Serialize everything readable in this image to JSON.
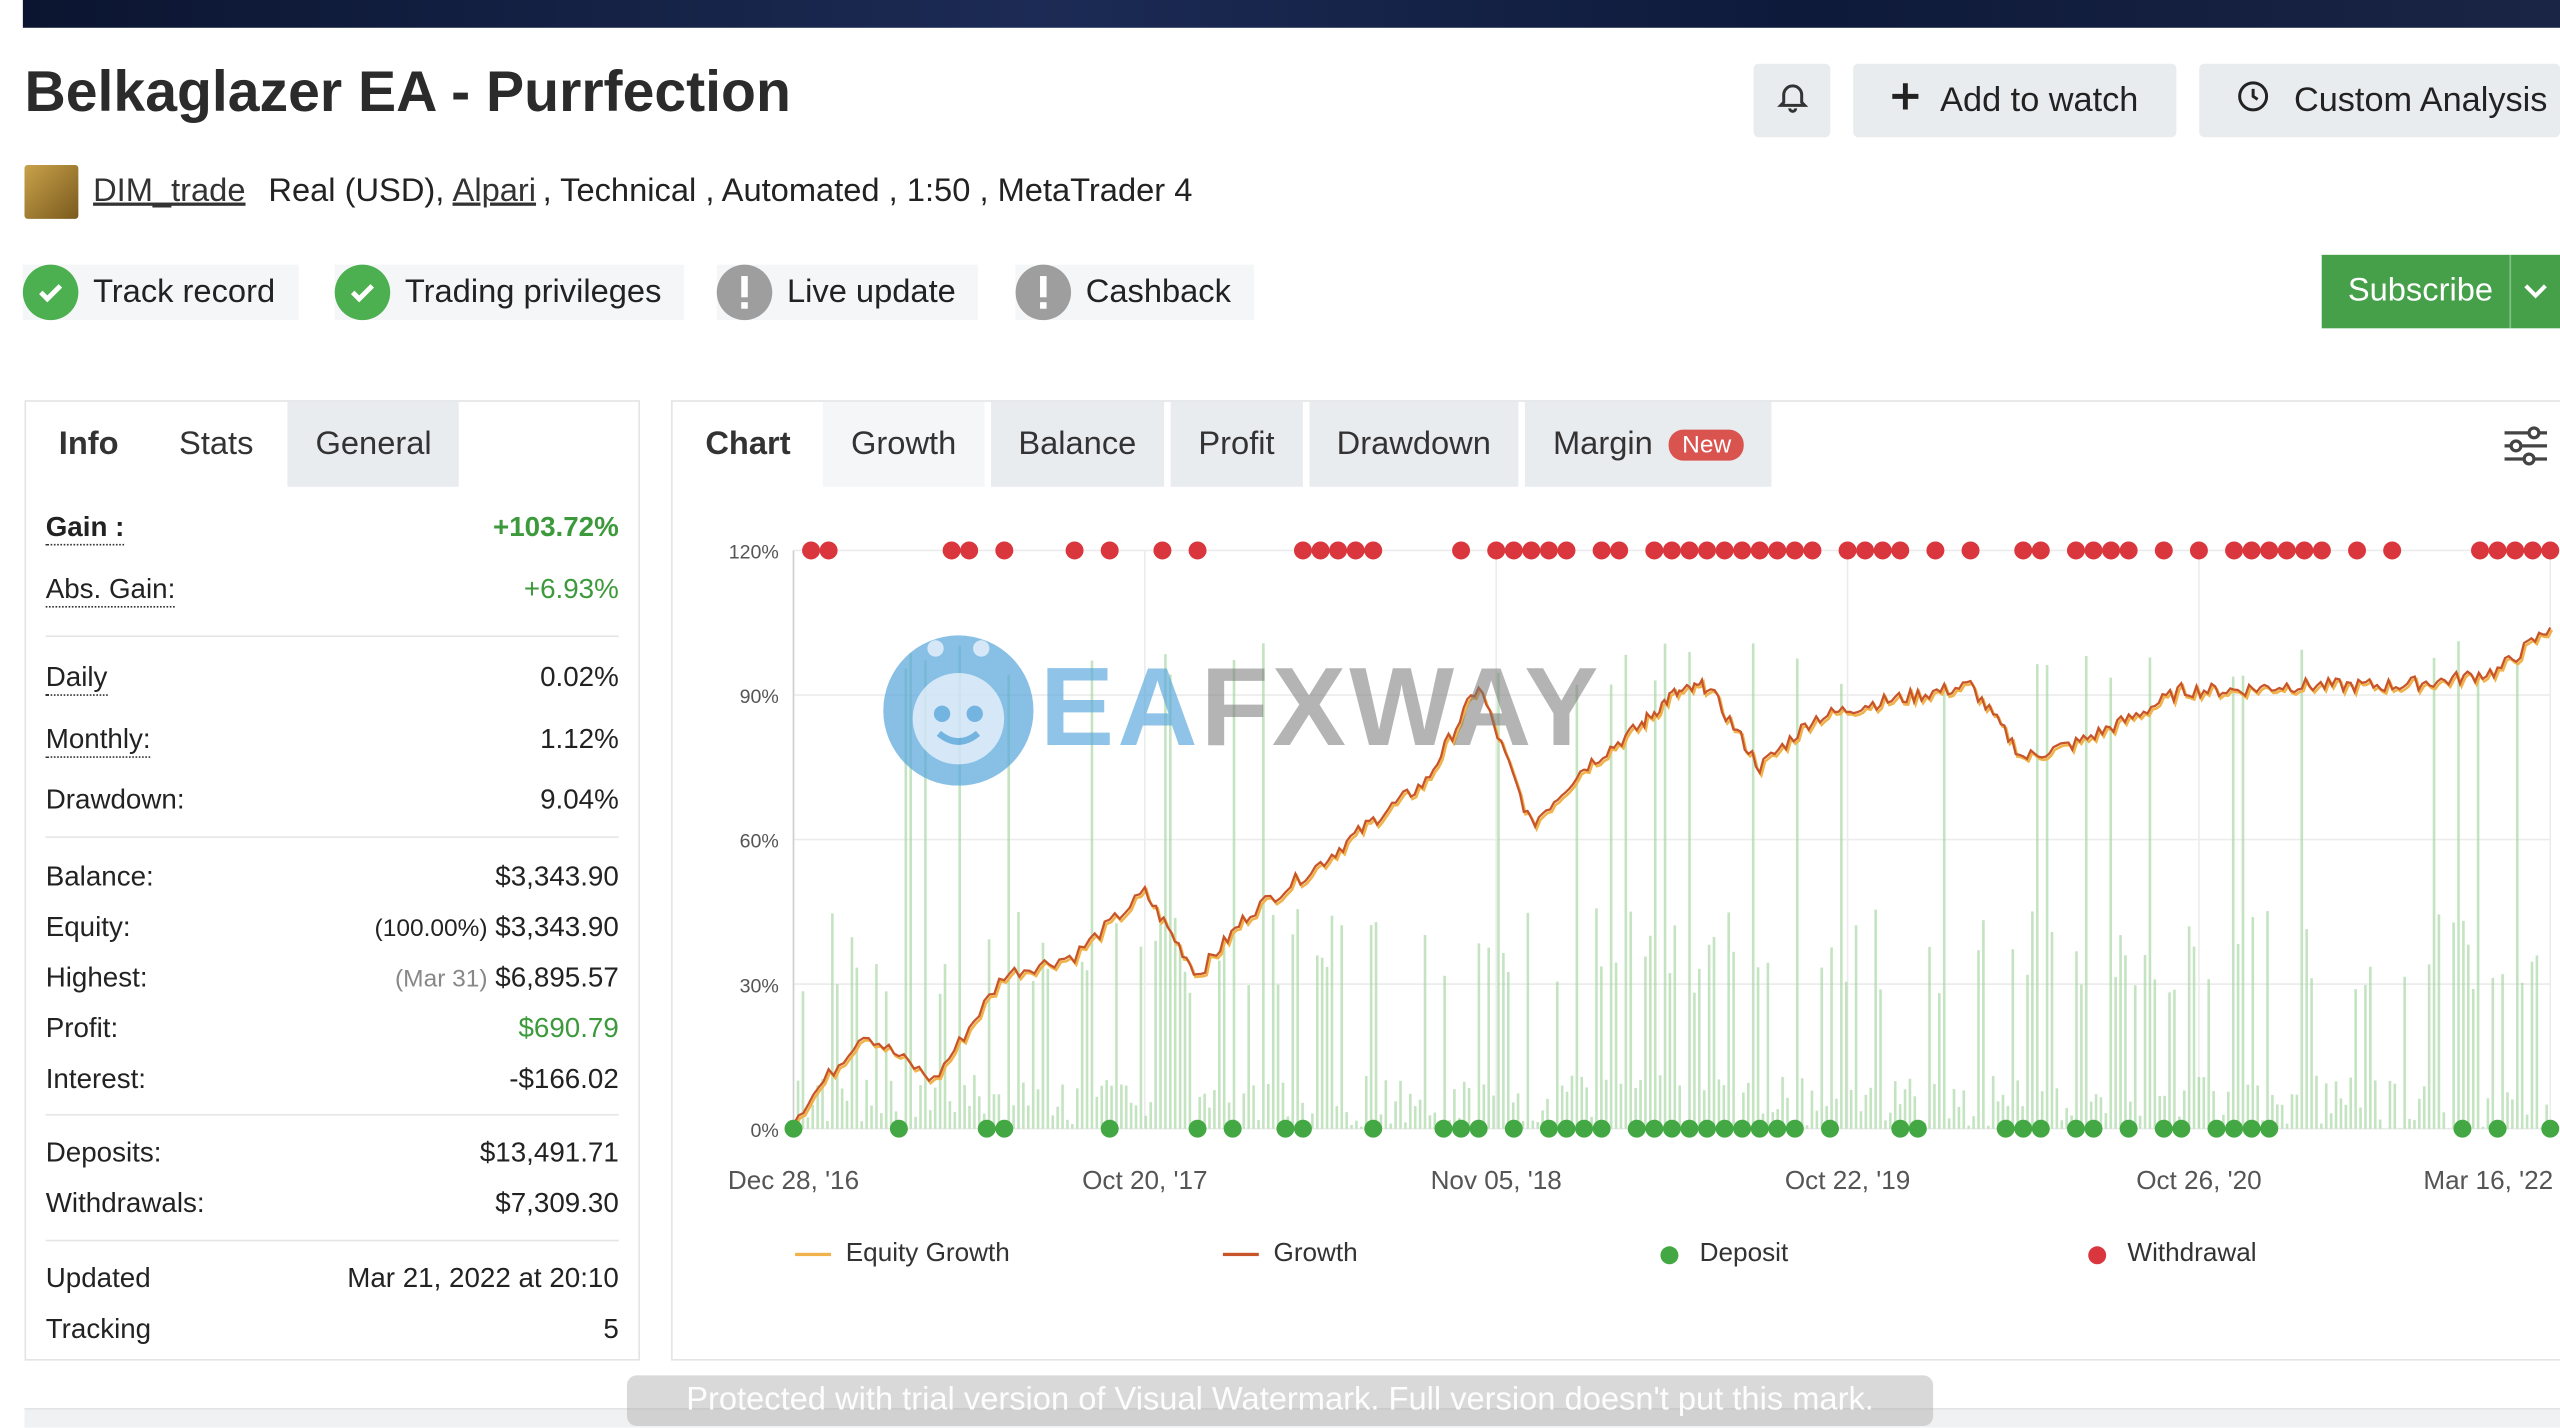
{
  "header": {
    "title": "Belkaglazer EA - Purrfection",
    "add_to_watch": "Add to watch",
    "custom_analysis": "Custom Analysis"
  },
  "meta": {
    "user": "DIM_trade",
    "account": "Real (USD),",
    "broker": "Alpari",
    "tags": ", Technical , Automated , 1:50 , MetaTrader 4"
  },
  "badges": [
    {
      "label": "Track record",
      "status": "ok"
    },
    {
      "label": "Trading privileges",
      "status": "ok"
    },
    {
      "label": "Live update",
      "status": "warn"
    },
    {
      "label": "Cashback",
      "status": "warn"
    }
  ],
  "subscribe": "Subscribe",
  "info_panel": {
    "tabs": [
      "Info",
      "Stats",
      "General"
    ],
    "gain_label": "Gain :",
    "gain": "+103.72%",
    "abs_gain_label": "Abs. Gain:",
    "abs_gain": "+6.93%",
    "daily_label": "Daily",
    "daily": "0.02%",
    "monthly_label": "Monthly:",
    "monthly": "1.12%",
    "drawdown_label": "Drawdown:",
    "drawdown": "9.04%",
    "balance_label": "Balance:",
    "balance": "$3,343.90",
    "equity_label": "Equity:",
    "equity_pct": "(100.00%)",
    "equity": "$3,343.90",
    "highest_label": "Highest:",
    "highest_date": "(Mar 31)",
    "highest": "$6,895.57",
    "profit_label": "Profit:",
    "profit": "$690.79",
    "interest_label": "Interest:",
    "interest": "-$166.02",
    "deposits_label": "Deposits:",
    "deposits": "$13,491.71",
    "withdrawals_label": "Withdrawals:",
    "withdrawals": "$7,309.30",
    "updated_label": "Updated",
    "updated": "Mar 21, 2022 at 20:10",
    "tracking_label": "Tracking",
    "tracking": "5"
  },
  "chart_panel": {
    "tabs": [
      "Chart",
      "Growth",
      "Balance",
      "Profit",
      "Drawdown",
      "Margin"
    ],
    "new_badge": "New"
  },
  "watermarks": {
    "logo_text_blue": "EA",
    "logo_text_gray": "FXWAY",
    "footer": "Protected with trial version of Visual Watermark. Full version doesn't put this mark."
  },
  "colors": {
    "growth": "#c8552a",
    "equity": "#f0b24a",
    "deposit": "#43a843",
    "withdrawal": "#d9363e",
    "bars": "#a5d6a0",
    "subscribe": "#45a049",
    "new_badge": "#d9534f"
  },
  "chart_data": {
    "type": "line",
    "x_ticks": [
      "Dec 28, '16",
      "Oct 20, '17",
      "Nov 05, '18",
      "Oct 22, '19",
      "Oct 26, '20",
      "Mar 16, '22"
    ],
    "y_ticks": [
      "0%",
      "30%",
      "60%",
      "90%",
      "120%"
    ],
    "ylim": [
      0,
      120
    ],
    "grid": true,
    "legend": [
      "Equity Growth",
      "Growth",
      "Deposit",
      "Withdrawal"
    ],
    "legend_position": "bottom",
    "series": [
      {
        "name": "Growth",
        "x": [
          0,
          0.04,
          0.08,
          0.12,
          0.16,
          0.2,
          0.23,
          0.26,
          0.3,
          0.33,
          0.36,
          0.39,
          0.42,
          0.45,
          0.48,
          0.5,
          0.52,
          0.55,
          0.58,
          0.61,
          0.64,
          0.67,
          0.7,
          0.73,
          0.76,
          0.79,
          0.82,
          0.85,
          0.88,
          0.91,
          0.94,
          0.97,
          1.0
        ],
        "values": [
          2,
          20,
          10,
          32,
          36,
          49,
          32,
          45,
          55,
          64,
          72,
          92,
          63,
          75,
          83,
          90,
          92,
          75,
          85,
          88,
          90,
          92,
          77,
          80,
          85,
          91,
          91,
          92,
          92,
          92,
          93,
          95,
          104
        ]
      }
    ],
    "deposits_x": [
      0.0,
      0.06,
      0.11,
      0.12,
      0.18,
      0.23,
      0.25,
      0.28,
      0.29,
      0.33,
      0.37,
      0.38,
      0.39,
      0.41,
      0.43,
      0.44,
      0.45,
      0.46,
      0.48,
      0.49,
      0.5,
      0.51,
      0.52,
      0.53,
      0.54,
      0.55,
      0.56,
      0.57,
      0.59,
      0.63,
      0.64,
      0.69,
      0.7,
      0.71,
      0.73,
      0.74,
      0.76,
      0.78,
      0.79,
      0.81,
      0.82,
      0.83,
      0.84,
      0.95,
      0.97,
      1.0
    ],
    "withdrawals_x": [
      0.01,
      0.02,
      0.09,
      0.1,
      0.12,
      0.16,
      0.18,
      0.21,
      0.23,
      0.29,
      0.3,
      0.31,
      0.32,
      0.33,
      0.38,
      0.4,
      0.41,
      0.42,
      0.43,
      0.44,
      0.46,
      0.47,
      0.49,
      0.5,
      0.51,
      0.52,
      0.53,
      0.54,
      0.55,
      0.56,
      0.57,
      0.58,
      0.6,
      0.61,
      0.62,
      0.63,
      0.65,
      0.67,
      0.7,
      0.71,
      0.73,
      0.74,
      0.75,
      0.76,
      0.78,
      0.8,
      0.82,
      0.83,
      0.84,
      0.85,
      0.86,
      0.87,
      0.89,
      0.91,
      0.96,
      0.97,
      0.98,
      0.99,
      1.0
    ]
  }
}
